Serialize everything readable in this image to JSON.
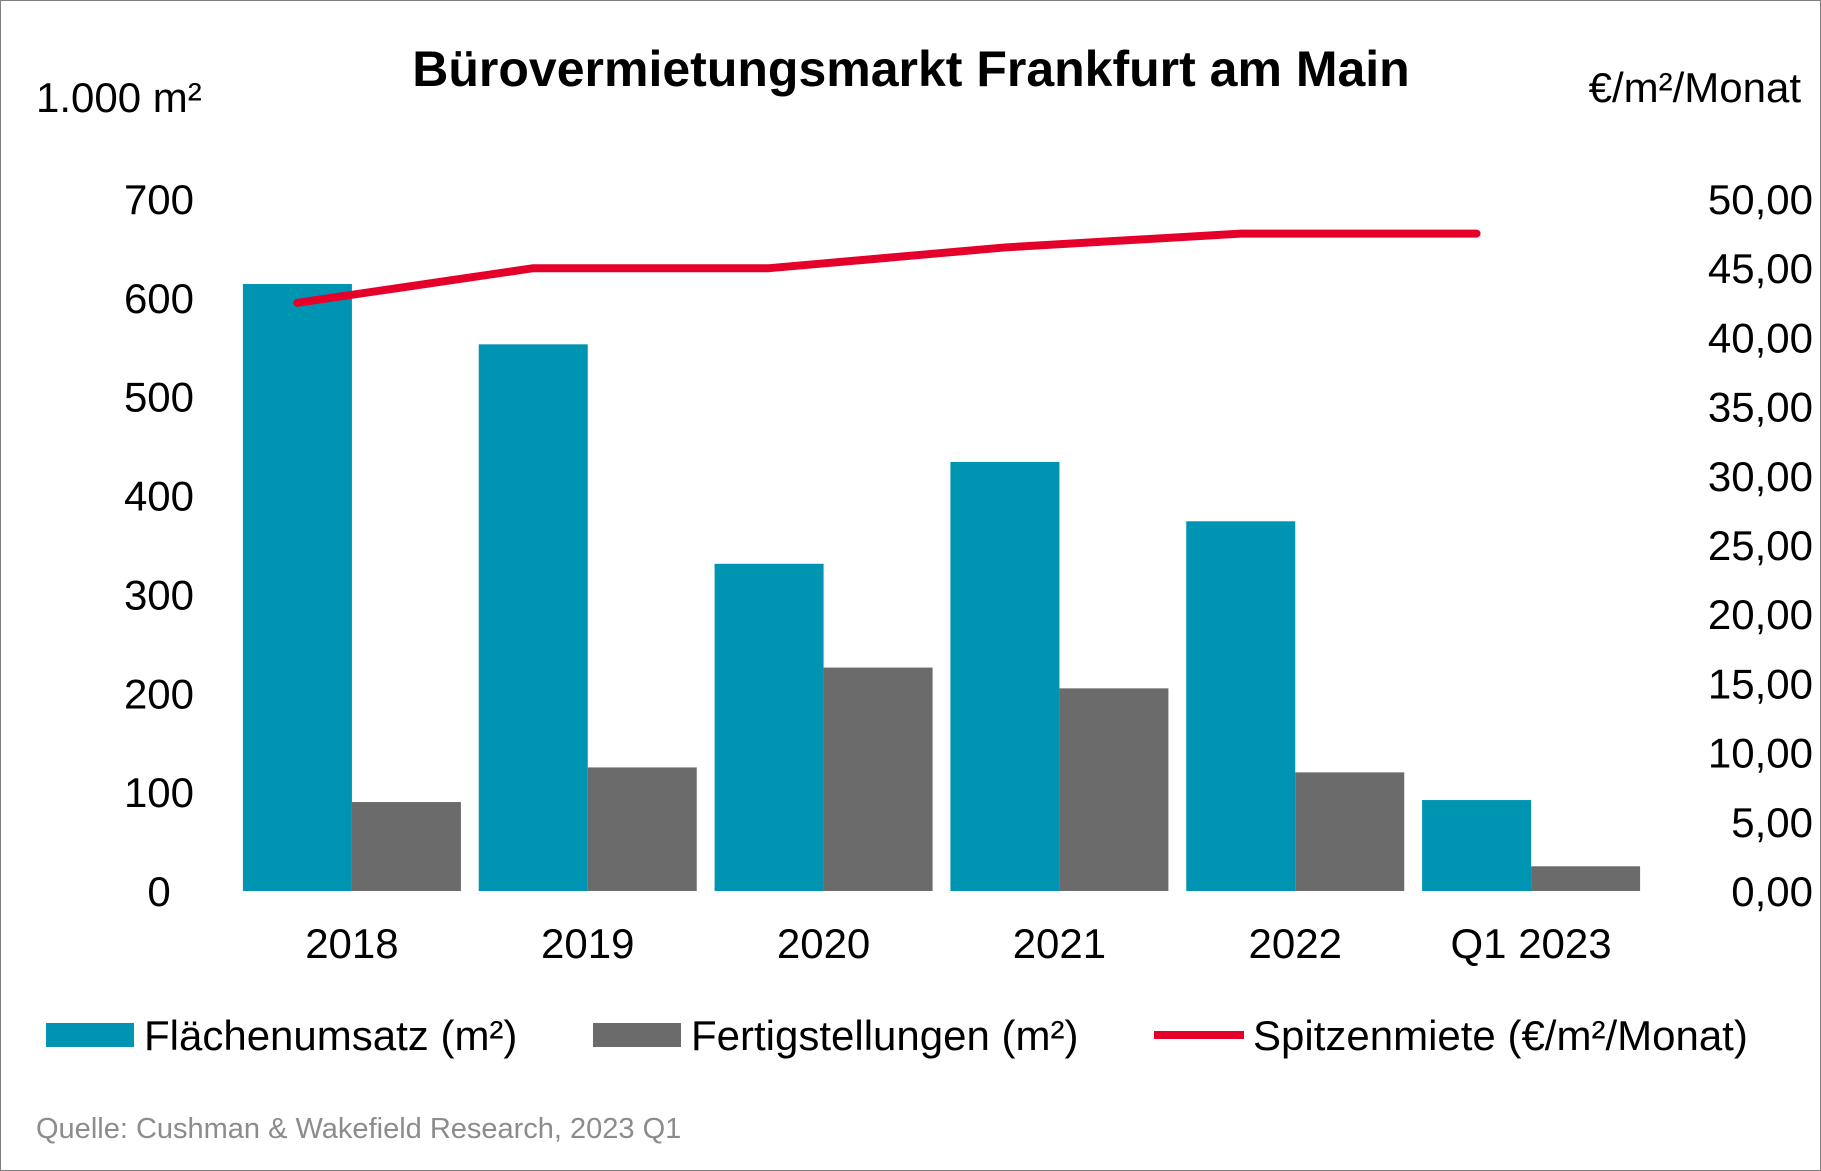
{
  "chart_data": {
    "type": "bar",
    "title": "Bürovermietungsmarkt Frankfurt am Main",
    "ylabel_left": "1.000 m²",
    "ylabel_right": "€/m²/Monat",
    "categories": [
      "2018",
      "2019",
      "2020",
      "2021",
      "2022",
      "Q1 2023"
    ],
    "y_left": {
      "ylim": [
        0,
        700
      ],
      "ticks": [
        "0",
        "100",
        "200",
        "300",
        "400",
        "500",
        "600",
        "700"
      ],
      "tick_values": [
        0,
        100,
        200,
        300,
        400,
        500,
        600,
        700
      ]
    },
    "y_right": {
      "ylim": [
        0,
        50
      ],
      "ticks": [
        "0,00",
        "5,00",
        "10,00",
        "15,00",
        "20,00",
        "25,00",
        "30,00",
        "35,00",
        "40,00",
        "45,00",
        "50,00"
      ],
      "tick_values": [
        0,
        5,
        10,
        15,
        20,
        25,
        30,
        35,
        40,
        45,
        50
      ]
    },
    "series": [
      {
        "name": "Flächenumsatz (m²)",
        "type": "bar",
        "axis": "left",
        "color": "#0094b3",
        "values": [
          614,
          553,
          331,
          434,
          374,
          92
        ]
      },
      {
        "name": "Fertigstellungen (m²)",
        "type": "bar",
        "axis": "left",
        "color": "#6a6b6a",
        "values": [
          90,
          125,
          226,
          205,
          120,
          25
        ]
      },
      {
        "name": "Spitzenmiete (€/m²/Monat)",
        "type": "line",
        "axis": "right",
        "color": "#e4002b",
        "values": [
          42.5,
          45.0,
          45.0,
          46.5,
          47.5,
          47.5
        ]
      }
    ],
    "grid": false,
    "legend_position": "bottom"
  },
  "source": "Quelle: Cushman & Wakefield Research, 2023 Q1"
}
